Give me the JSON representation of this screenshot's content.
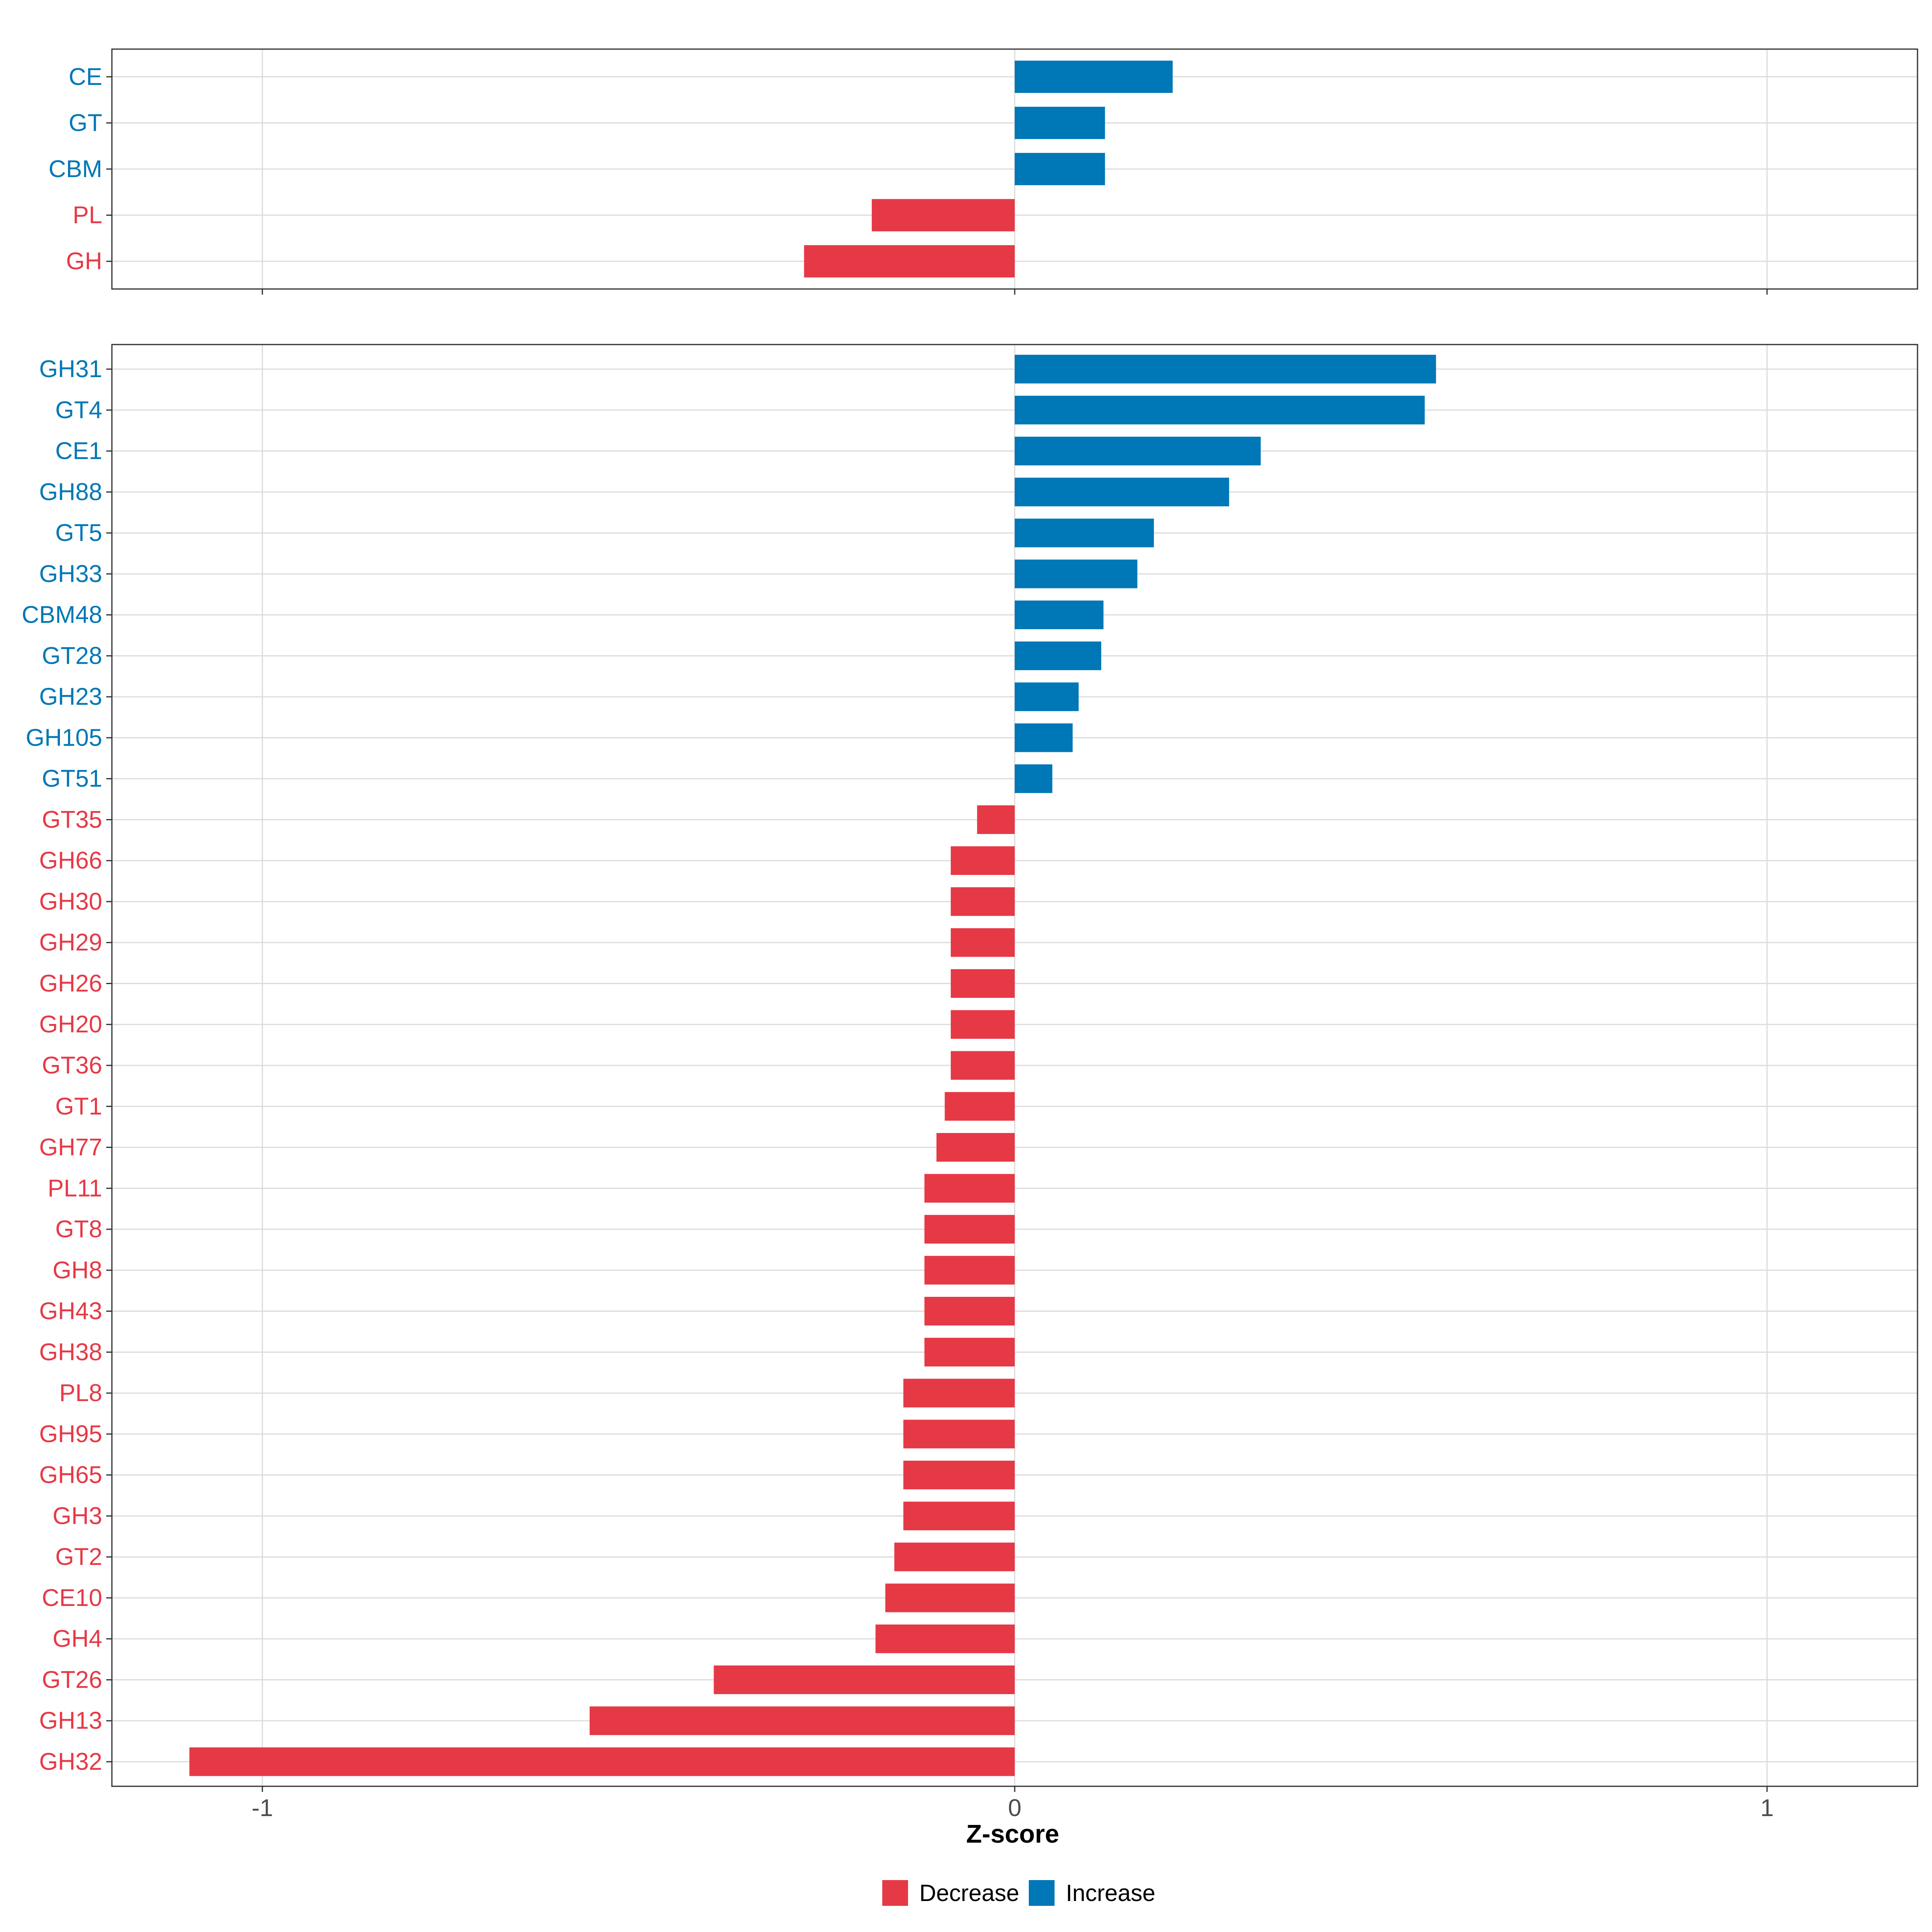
{
  "chart_data": {
    "type": "bar",
    "orientation": "horizontal",
    "xlabel": "Z-score",
    "xlim": [
      -1.2,
      1.2
    ],
    "xticks": [
      -1,
      0,
      1
    ],
    "xtick_labels": [
      "-1",
      "0",
      "1"
    ],
    "grid": true,
    "colors": {
      "Decrease": "#e63946",
      "Increase": "#0077b6"
    },
    "legend": {
      "position": "bottom",
      "entries": [
        {
          "label": "Decrease",
          "color": "#e63946"
        },
        {
          "label": "Increase",
          "color": "#0077b6"
        }
      ]
    },
    "panels": [
      {
        "name": "class",
        "categories": [
          "CE",
          "GT",
          "CBM",
          "PL",
          "GH"
        ],
        "values": [
          0.21,
          0.12,
          0.12,
          -0.19,
          -0.28
        ]
      },
      {
        "name": "family",
        "categories": [
          "GH31",
          "GT4",
          "CE1",
          "GH88",
          "GT5",
          "GH33",
          "CBM48",
          "GT28",
          "GH23",
          "GH105",
          "GT51",
          "GT35",
          "GH66",
          "GH30",
          "GH29",
          "GH26",
          "GH20",
          "GT36",
          "GT1",
          "GH77",
          "PL11",
          "GT8",
          "GH8",
          "GH43",
          "GH38",
          "PL8",
          "GH95",
          "GH65",
          "GH3",
          "GT2",
          "CE10",
          "GH4",
          "GT26",
          "GH13",
          "GH32"
        ],
        "values": [
          0.56,
          0.545,
          0.327,
          0.285,
          0.185,
          0.163,
          0.118,
          0.115,
          0.085,
          0.077,
          0.05,
          -0.05,
          -0.085,
          -0.085,
          -0.085,
          -0.085,
          -0.085,
          -0.085,
          -0.093,
          -0.104,
          -0.12,
          -0.12,
          -0.12,
          -0.12,
          -0.12,
          -0.148,
          -0.148,
          -0.148,
          -0.148,
          -0.16,
          -0.172,
          -0.185,
          -0.4,
          -0.565,
          -1.097
        ]
      }
    ]
  }
}
